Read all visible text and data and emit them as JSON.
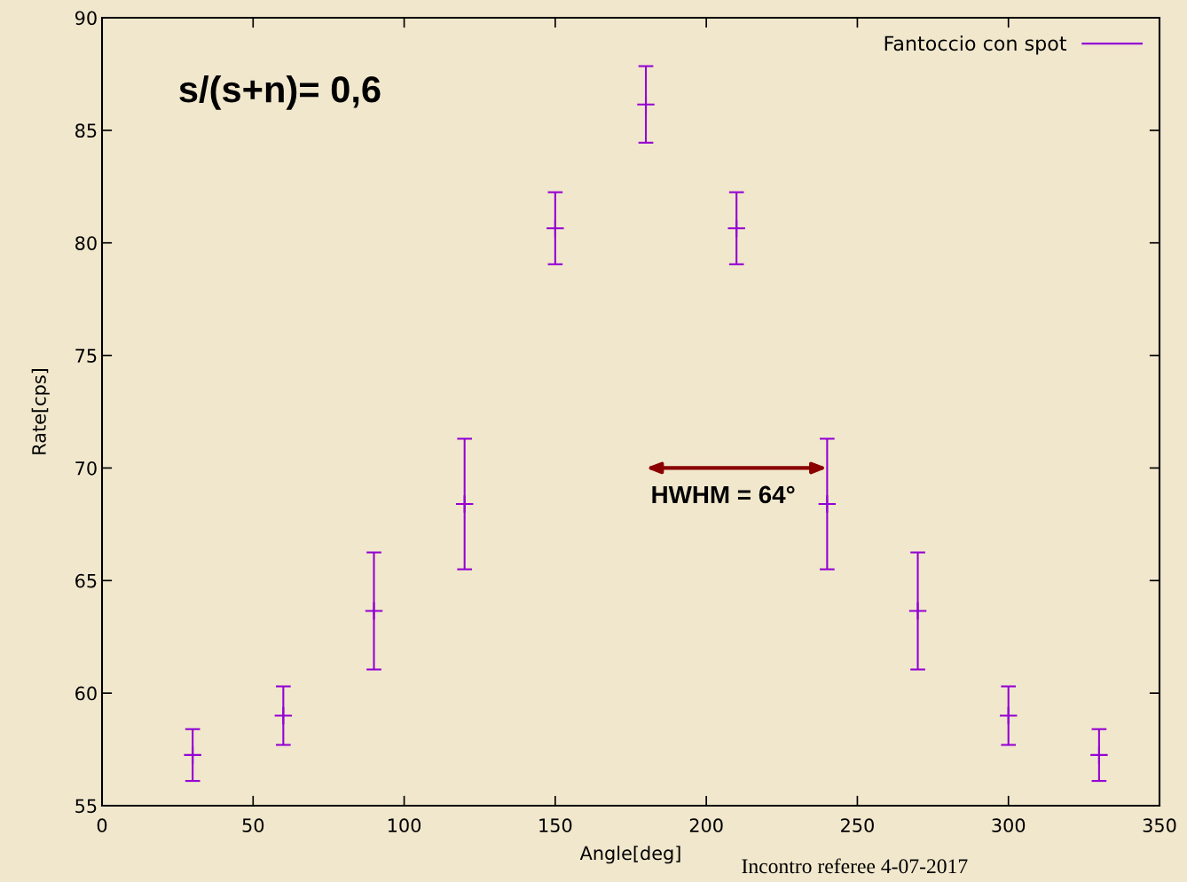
{
  "chart_data": {
    "type": "scatter",
    "xlabel": "Angle[deg]",
    "ylabel": "Rate[cps]",
    "x": [
      30,
      60,
      90,
      120,
      150,
      180,
      210,
      240,
      270,
      300,
      330
    ],
    "series": [
      {
        "name": "Fantoccio con spot",
        "color": "#9400d3",
        "values": [
          57.25,
          59.0,
          63.65,
          68.4,
          80.65,
          86.15,
          80.65,
          68.4,
          63.65,
          59.0,
          57.25
        ],
        "errors": [
          1.15,
          1.3,
          2.6,
          2.9,
          1.6,
          1.7,
          1.6,
          2.9,
          2.6,
          1.3,
          1.15
        ]
      }
    ],
    "xlim": [
      0,
      350
    ],
    "xticks": [
      0,
      50,
      100,
      150,
      200,
      250,
      300,
      350
    ],
    "ylim": [
      55,
      90
    ],
    "yticks": [
      55,
      60,
      65,
      70,
      75,
      80,
      85,
      90
    ],
    "marker": "cross",
    "grid": false,
    "legend": "top right",
    "annotations": [
      "s/(s+n)= 0,6",
      {
        "text": "HWHM = 64°",
        "x": 240,
        "y": 70
      },
      "Incontro referee 4-07-2017"
    ]
  }
}
